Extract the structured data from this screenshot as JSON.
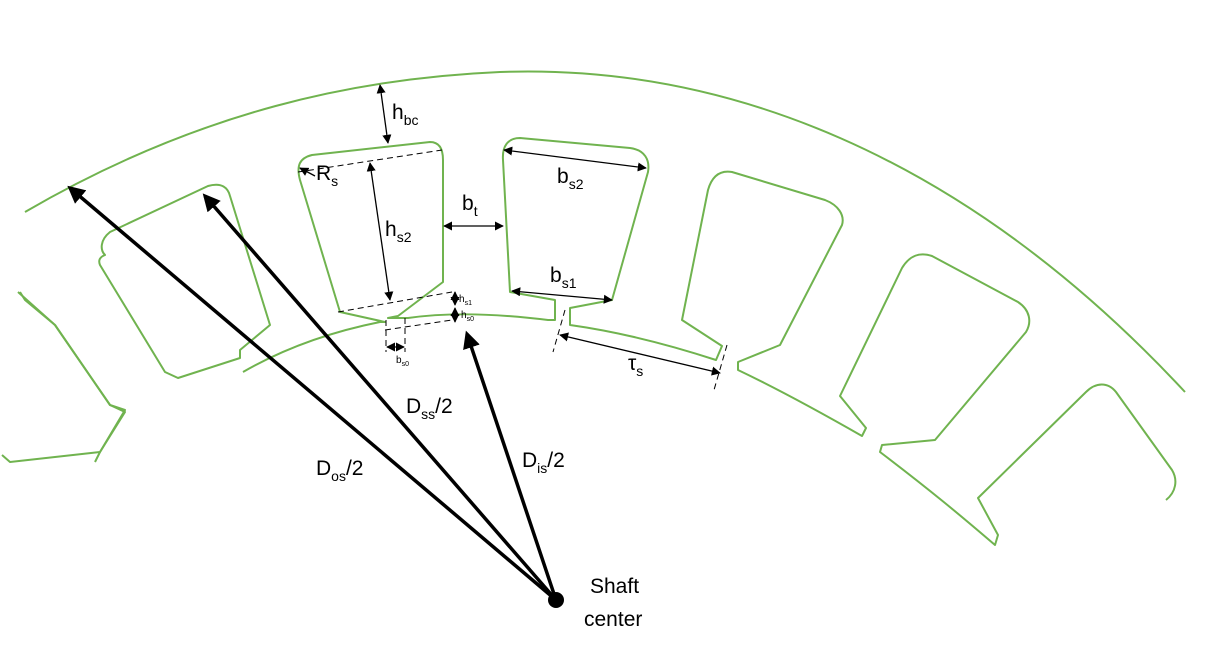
{
  "labels": {
    "h": "h",
    "bc": "bc",
    "R": "R",
    "s": "s",
    "hs2_main": "h",
    "hs2_sub": "s2",
    "bt_main": "b",
    "bt_sub": "t",
    "bs2_main": "b",
    "bs2_sub": "s2",
    "bs1_main": "b",
    "bs1_sub": "s1",
    "hs1_main": "h",
    "hs1_sub": "s1",
    "hs0_main": "h",
    "hs0_sub": "s0",
    "bs0_main": "b",
    "bs0_sub": "s0",
    "tau_main": "τ",
    "tau_sub": "s",
    "dss_main": "D",
    "dss_sub": "ss",
    "dss_tail": "/2",
    "dos_main": "D",
    "dos_sub": "os",
    "dos_tail": "/2",
    "dis_main": "D",
    "dis_sub": "is",
    "dis_tail": "/2",
    "shaft_line1": "Shaft",
    "shaft_line2": "center"
  },
  "colors": {
    "outline": "#70b34f",
    "annotation": "#000000"
  }
}
